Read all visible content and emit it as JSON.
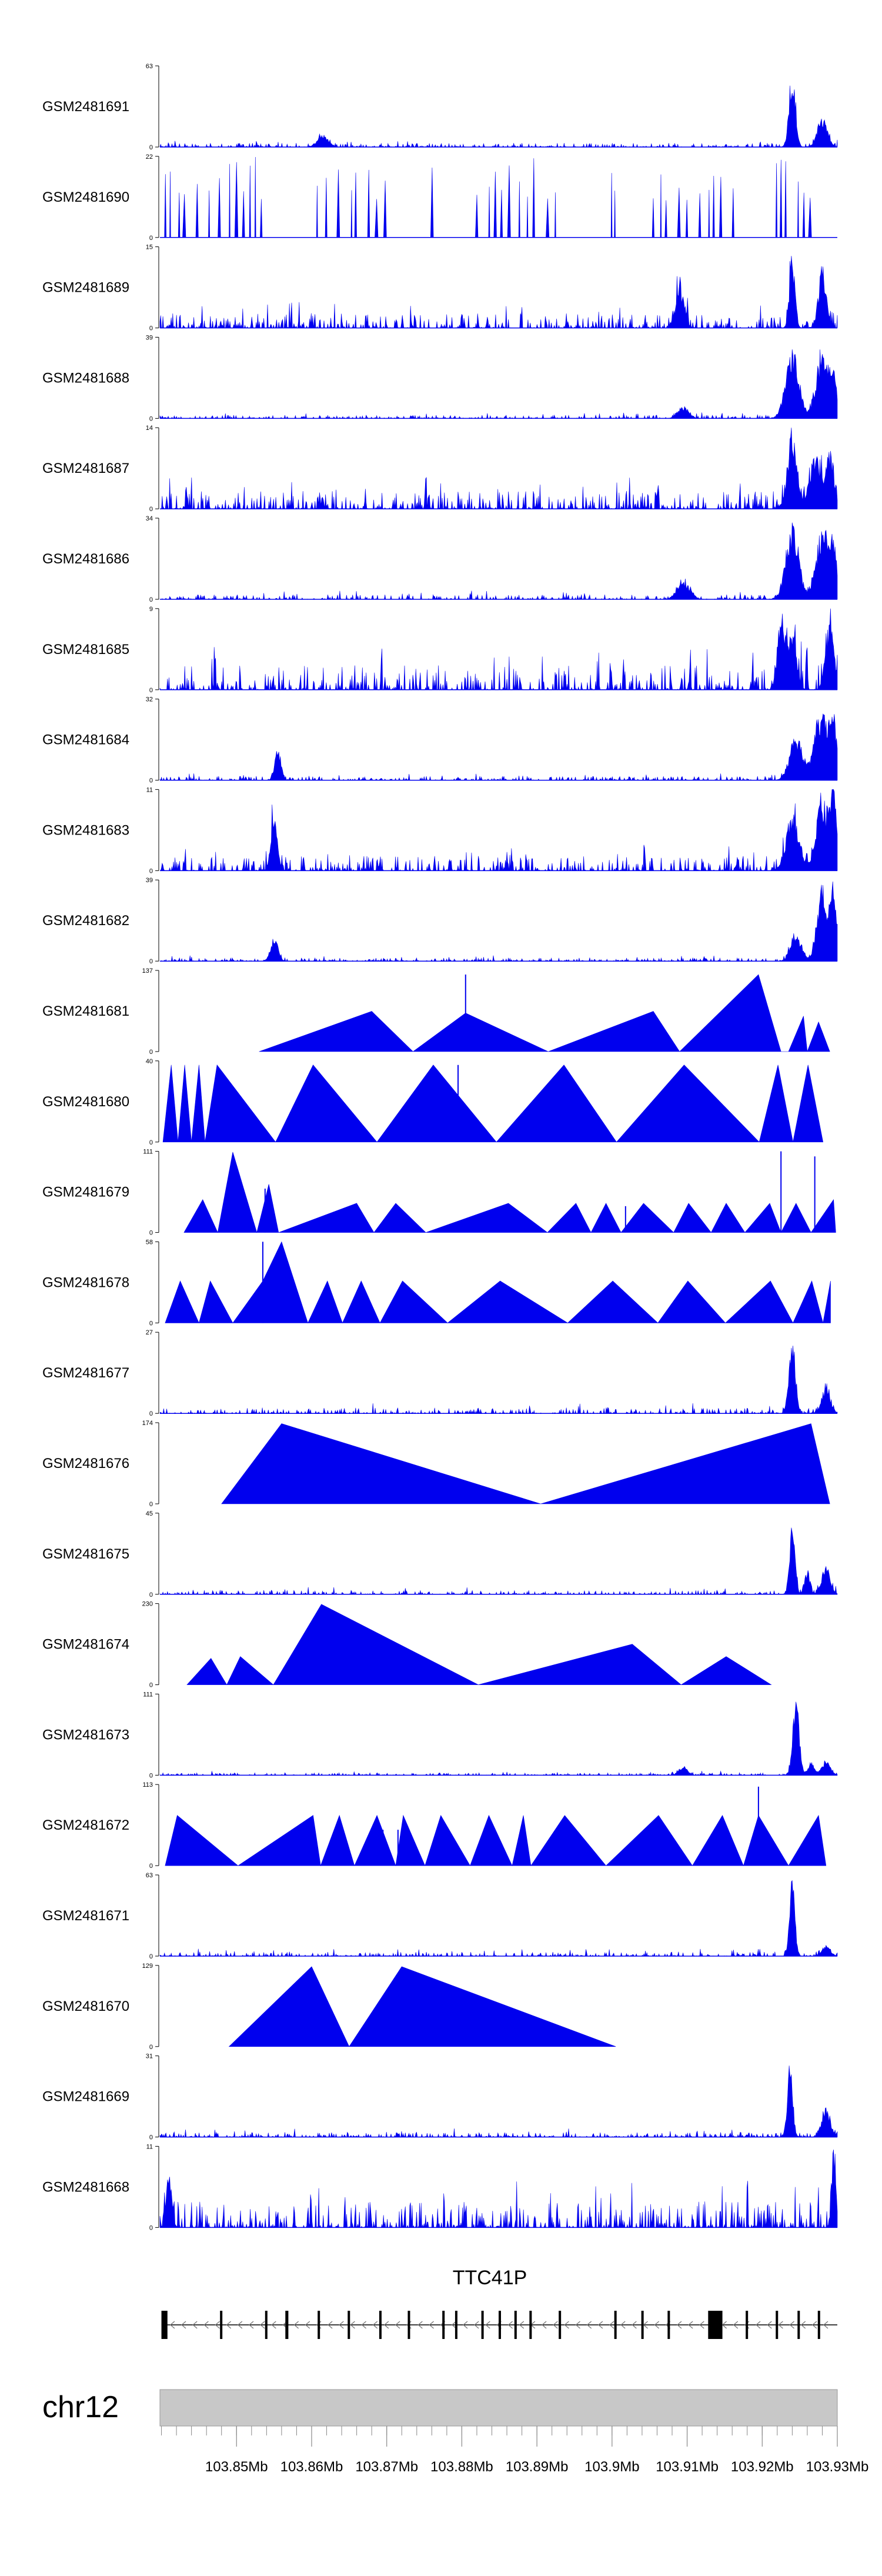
{
  "chart_data": {
    "type": "area",
    "title": "",
    "colors": {
      "signal": "#0000ee",
      "ideogram": "#c8c8c8",
      "gene": "#000000"
    },
    "x_range_mb": [
      103.8398,
      103.93
    ],
    "tracks": [
      {
        "name": "GSM2481691",
        "ymax": 63,
        "style": "dense",
        "seed": 101,
        "base": 0.05,
        "peaks": [
          [
            103.924,
            62,
            0.0006
          ],
          [
            103.928,
            25,
            0.0009
          ],
          [
            103.8615,
            10,
            0.001
          ]
        ]
      },
      {
        "name": "GSM2481690",
        "ymax": 22,
        "style": "sparse",
        "seed": 202,
        "count": 60,
        "hmin": 0.45,
        "hmax": 1.0
      },
      {
        "name": "GSM2481689",
        "ymax": 15,
        "style": "dense",
        "seed": 303,
        "base": 0.18,
        "peaks": [
          [
            103.924,
            15,
            0.0005
          ],
          [
            103.928,
            12,
            0.0007
          ],
          [
            103.909,
            8,
            0.0008
          ]
        ]
      },
      {
        "name": "GSM2481688",
        "ymax": 39,
        "style": "dense",
        "seed": 404,
        "base": 0.04,
        "peaks": [
          [
            103.924,
            37,
            0.0012
          ],
          [
            103.928,
            33,
            0.0012
          ],
          [
            103.9295,
            20,
            0.0006
          ],
          [
            103.9095,
            6,
            0.001
          ]
        ]
      },
      {
        "name": "GSM2481687",
        "ymax": 14,
        "style": "dense",
        "seed": 505,
        "base": 0.22,
        "peaks": [
          [
            103.924,
            14,
            0.0009
          ],
          [
            103.927,
            10,
            0.001
          ],
          [
            103.929,
            11,
            0.0008
          ]
        ]
      },
      {
        "name": "GSM2481686",
        "ymax": 34,
        "style": "dense",
        "seed": 606,
        "base": 0.06,
        "peaks": [
          [
            103.924,
            33,
            0.0012
          ],
          [
            103.928,
            30,
            0.0012
          ],
          [
            103.9295,
            22,
            0.0006
          ],
          [
            103.9095,
            8,
            0.0012
          ]
        ]
      },
      {
        "name": "GSM2481685",
        "ymax": 9,
        "style": "dense",
        "seed": 707,
        "base": 0.3,
        "peaks": [
          [
            103.9225,
            9,
            0.0007
          ],
          [
            103.924,
            7,
            0.0008
          ],
          [
            103.929,
            8,
            0.0008
          ]
        ]
      },
      {
        "name": "GSM2481684",
        "ymax": 32,
        "style": "dense",
        "seed": 808,
        "base": 0.05,
        "peaks": [
          [
            103.8555,
            13,
            0.0006
          ],
          [
            103.9245,
            18,
            0.0012
          ],
          [
            103.928,
            30,
            0.0014
          ],
          [
            103.9295,
            22,
            0.0006
          ]
        ]
      },
      {
        "name": "GSM2481683",
        "ymax": 11,
        "style": "dense",
        "seed": 909,
        "base": 0.18,
        "peaks": [
          [
            103.855,
            8,
            0.0006
          ],
          [
            103.924,
            8,
            0.0012
          ],
          [
            103.928,
            10,
            0.0012
          ],
          [
            103.9295,
            11,
            0.0006
          ]
        ]
      },
      {
        "name": "GSM2481682",
        "ymax": 39,
        "style": "dense",
        "seed": 111,
        "base": 0.04,
        "peaks": [
          [
            103.855,
            12,
            0.0007
          ],
          [
            103.9245,
            14,
            0.001
          ],
          [
            103.928,
            38,
            0.001
          ],
          [
            103.9295,
            36,
            0.0006
          ]
        ]
      },
      {
        "name": "GSM2481681",
        "ymax": 137,
        "style": "triangles",
        "spikes": [
          [
            103.8805,
            130
          ]
        ],
        "peaks": [
          [
            103.853,
            0
          ],
          [
            103.868,
            68
          ],
          [
            103.8735,
            0
          ],
          [
            103.8805,
            65
          ],
          [
            103.8915,
            0
          ],
          [
            103.9055,
            68
          ],
          [
            103.909,
            0
          ],
          [
            103.9195,
            130
          ],
          [
            103.9225,
            0
          ],
          [
            103.9235,
            0
          ],
          [
            103.9255,
            60
          ],
          [
            103.926,
            0
          ],
          [
            103.9275,
            50
          ],
          [
            103.929,
            0
          ]
        ]
      },
      {
        "name": "GSM2481680",
        "ymax": 40,
        "style": "triangles",
        "spikes": [
          [
            103.8795,
            38
          ]
        ],
        "peaks": [
          [
            103.8402,
            0
          ],
          [
            103.8413,
            38
          ],
          [
            103.8422,
            0
          ],
          [
            103.8431,
            38
          ],
          [
            103.844,
            0
          ],
          [
            103.845,
            38
          ],
          [
            103.8458,
            0
          ],
          [
            103.8474,
            38
          ],
          [
            103.8552,
            0
          ],
          [
            103.8602,
            38
          ],
          [
            103.8687,
            0
          ],
          [
            103.8762,
            38
          ],
          [
            103.8846,
            0
          ],
          [
            103.8936,
            38
          ],
          [
            103.9006,
            0
          ],
          [
            103.9096,
            38
          ],
          [
            103.9196,
            0
          ],
          [
            103.9221,
            38
          ],
          [
            103.9241,
            0
          ],
          [
            103.9261,
            38
          ],
          [
            103.9281,
            0
          ]
        ]
      },
      {
        "name": "GSM2481679",
        "ymax": 111,
        "style": "triangles",
        "spikes": [
          [
            103.8538,
            60
          ],
          [
            103.9018,
            36
          ],
          [
            103.9225,
            111
          ],
          [
            103.927,
            104
          ]
        ],
        "peaks": [
          [
            103.843,
            0
          ],
          [
            103.8455,
            45
          ],
          [
            103.8475,
            0
          ],
          [
            103.8495,
            110
          ],
          [
            103.8527,
            0
          ],
          [
            103.8543,
            66
          ],
          [
            103.8556,
            0
          ],
          [
            103.866,
            40
          ],
          [
            103.8683,
            0
          ],
          [
            103.8712,
            40
          ],
          [
            103.8752,
            0
          ],
          [
            103.8862,
            40
          ],
          [
            103.8914,
            0
          ],
          [
            103.8952,
            40
          ],
          [
            103.8972,
            0
          ],
          [
            103.8992,
            40
          ],
          [
            103.9012,
            0
          ],
          [
            103.9042,
            40
          ],
          [
            103.9082,
            0
          ],
          [
            103.9102,
            40
          ],
          [
            103.9132,
            0
          ],
          [
            103.9152,
            40
          ],
          [
            103.9177,
            0
          ],
          [
            103.921,
            40
          ],
          [
            103.9225,
            0
          ],
          [
            103.9245,
            40
          ],
          [
            103.9265,
            0
          ],
          [
            103.9295,
            45
          ],
          [
            103.9298,
            0
          ]
        ]
      },
      {
        "name": "GSM2481678",
        "ymax": 58,
        "style": "triangles",
        "spikes": [
          [
            103.8535,
            58
          ]
        ],
        "peaks": [
          [
            103.8405,
            0
          ],
          [
            103.8425,
            30
          ],
          [
            103.845,
            0
          ],
          [
            103.8465,
            30
          ],
          [
            103.8495,
            0
          ],
          [
            103.8535,
            30
          ],
          [
            103.856,
            58
          ],
          [
            103.8595,
            0
          ],
          [
            103.8621,
            30
          ],
          [
            103.8641,
            0
          ],
          [
            103.8666,
            30
          ],
          [
            103.8691,
            0
          ],
          [
            103.8721,
            30
          ],
          [
            103.8781,
            0
          ],
          [
            103.8851,
            30
          ],
          [
            103.8941,
            0
          ],
          [
            103.9001,
            30
          ],
          [
            103.9061,
            0
          ],
          [
            103.9101,
            30
          ],
          [
            103.9151,
            0
          ],
          [
            103.9211,
            30
          ],
          [
            103.9241,
            0
          ],
          [
            103.9266,
            30
          ],
          [
            103.9281,
            0
          ],
          [
            103.9291,
            30
          ]
        ]
      },
      {
        "name": "GSM2481677",
        "ymax": 27,
        "style": "dense",
        "seed": 222,
        "base": 0.07,
        "peaks": [
          [
            103.924,
            26,
            0.0006
          ],
          [
            103.9285,
            9,
            0.0008
          ]
        ]
      },
      {
        "name": "GSM2481676",
        "ymax": 174,
        "style": "triangles",
        "spikes": [],
        "peaks": [
          [
            103.848,
            0
          ],
          [
            103.856,
            172
          ],
          [
            103.8905,
            0
          ],
          [
            103.9265,
            172
          ],
          [
            103.929,
            0
          ]
        ]
      },
      {
        "name": "GSM2481675",
        "ymax": 45,
        "style": "dense",
        "seed": 333,
        "base": 0.05,
        "peaks": [
          [
            103.924,
            44,
            0.0005
          ],
          [
            103.9285,
            16,
            0.0008
          ],
          [
            103.926,
            14,
            0.0005
          ]
        ]
      },
      {
        "name": "GSM2481674",
        "ymax": 230,
        "style": "triangles",
        "spikes": [],
        "peaks": [
          [
            103.8434,
            0
          ],
          [
            103.8466,
            75
          ],
          [
            103.8487,
            0
          ],
          [
            103.8505,
            80
          ],
          [
            103.8549,
            0
          ],
          [
            103.8613,
            228
          ],
          [
            103.8822,
            0
          ],
          [
            103.9027,
            115
          ],
          [
            103.9092,
            0
          ],
          [
            103.9152,
            80
          ],
          [
            103.9212,
            0
          ]
        ]
      },
      {
        "name": "GSM2481673",
        "ymax": 111,
        "style": "dense",
        "seed": 444,
        "base": 0.03,
        "peaks": [
          [
            103.9245,
            109,
            0.0006
          ],
          [
            103.9285,
            22,
            0.0008
          ],
          [
            103.9265,
            18,
            0.0006
          ],
          [
            103.9095,
            12,
            0.0008
          ]
        ]
      },
      {
        "name": "GSM2481672",
        "ymax": 113,
        "style": "triangles",
        "spikes": [
          [
            103.8695,
            50
          ],
          [
            103.8715,
            50
          ],
          [
            103.8722,
            55
          ],
          [
            103.9145,
            48
          ],
          [
            103.9195,
            110
          ]
        ],
        "peaks": [
          [
            103.8405,
            0
          ],
          [
            103.8421,
            70
          ],
          [
            103.8502,
            0
          ],
          [
            103.8602,
            70
          ],
          [
            103.8612,
            0
          ],
          [
            103.8637,
            70
          ],
          [
            103.8657,
            0
          ],
          [
            103.8687,
            70
          ],
          [
            103.8712,
            0
          ],
          [
            103.8722,
            70
          ],
          [
            103.8751,
            0
          ],
          [
            103.8772,
            70
          ],
          [
            103.8811,
            0
          ],
          [
            103.8836,
            70
          ],
          [
            103.8867,
            0
          ],
          [
            103.8882,
            70
          ],
          [
            103.8892,
            0
          ],
          [
            103.8937,
            70
          ],
          [
            103.8992,
            0
          ],
          [
            103.9062,
            70
          ],
          [
            103.9107,
            0
          ],
          [
            103.9147,
            70
          ],
          [
            103.9175,
            0
          ],
          [
            103.9195,
            70
          ],
          [
            103.9235,
            0
          ],
          [
            103.9275,
            70
          ],
          [
            103.9285,
            0
          ]
        ]
      },
      {
        "name": "GSM2481671",
        "ymax": 63,
        "style": "dense",
        "seed": 555,
        "base": 0.05,
        "peaks": [
          [
            103.924,
            62,
            0.0005
          ],
          [
            103.9285,
            8,
            0.0008
          ]
        ]
      },
      {
        "name": "GSM2481670",
        "ymax": 129,
        "style": "triangles",
        "spikes": [],
        "peaks": [
          [
            103.849,
            0
          ],
          [
            103.86,
            127
          ],
          [
            103.865,
            0
          ],
          [
            103.872,
            127
          ],
          [
            103.9005,
            0
          ]
        ]
      },
      {
        "name": "GSM2481669",
        "ymax": 31,
        "style": "dense",
        "seed": 666,
        "base": 0.06,
        "peaks": [
          [
            103.9237,
            30,
            0.0005
          ],
          [
            103.9285,
            12,
            0.0008
          ]
        ]
      },
      {
        "name": "GSM2481668",
        "ymax": 11,
        "style": "dense",
        "seed": 777,
        "base": 0.32,
        "peaks": [
          [
            103.9295,
            11,
            0.0004
          ],
          [
            103.841,
            8,
            0.0005
          ]
        ]
      }
    ],
    "gene": {
      "name": "TTC41P",
      "strand": "-",
      "start_mb": 103.84,
      "end_mb": 103.93,
      "exons": [
        [
          103.84,
          103.8408
        ],
        [
          103.8478,
          103.8481
        ],
        [
          103.8538,
          103.8541
        ],
        [
          103.8565,
          103.8569
        ],
        [
          103.8608,
          103.861
        ],
        [
          103.8648,
          103.8651
        ],
        [
          103.869,
          103.8692
        ],
        [
          103.8728,
          103.8731
        ],
        [
          103.8774,
          103.8777
        ],
        [
          103.8791,
          103.8794
        ],
        [
          103.8826,
          103.8829
        ],
        [
          103.8849,
          103.8851
        ],
        [
          103.887,
          103.8873
        ],
        [
          103.889,
          103.8893
        ],
        [
          103.8929,
          103.8932
        ],
        [
          103.9003,
          103.9006
        ],
        [
          103.9039,
          103.9042
        ],
        [
          103.9074,
          103.9076
        ],
        [
          103.9128,
          103.9147
        ],
        [
          103.9178,
          103.9181
        ],
        [
          103.9218,
          103.9221
        ],
        [
          103.9247,
          103.925
        ],
        [
          103.9274,
          103.9277
        ]
      ]
    },
    "chromosome": "chr12",
    "axis_ticks": [
      "103.85Mb",
      "103.86Mb",
      "103.87Mb",
      "103.88Mb",
      "103.89Mb",
      "103.9Mb",
      "103.91Mb",
      "103.92Mb",
      "103.93Mb"
    ],
    "axis_tick_values_mb": [
      103.85,
      103.86,
      103.87,
      103.88,
      103.89,
      103.9,
      103.91,
      103.92,
      103.93
    ],
    "minor_tick_step_mb": 0.002
  }
}
